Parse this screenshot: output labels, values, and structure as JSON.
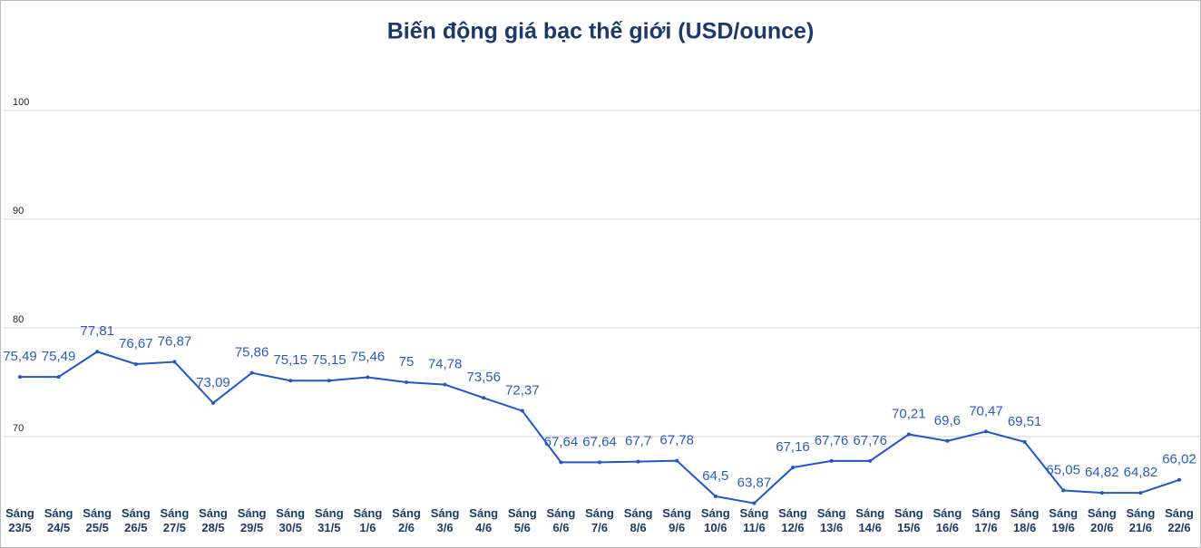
{
  "chart_data": {
    "type": "line",
    "title": "Biến động giá bạc thế giới (USD/ounce)",
    "categories": [
      [
        "Sáng",
        "23/5"
      ],
      [
        "Sáng",
        "24/5"
      ],
      [
        "Sáng",
        "25/5"
      ],
      [
        "Sáng",
        "26/5"
      ],
      [
        "Sáng",
        "27/5"
      ],
      [
        "Sáng",
        "28/5"
      ],
      [
        "Sáng",
        "29/5"
      ],
      [
        "Sáng",
        "30/5"
      ],
      [
        "Sáng",
        "31/5"
      ],
      [
        "Sáng",
        "1/6"
      ],
      [
        "Sáng",
        "2/6"
      ],
      [
        "Sáng",
        "3/6"
      ],
      [
        "Sáng",
        "4/6"
      ],
      [
        "Sáng",
        "5/6"
      ],
      [
        "Sáng",
        "6/6"
      ],
      [
        "Sáng",
        "7/6"
      ],
      [
        "Sáng",
        "8/6"
      ],
      [
        "Sáng",
        "9/6"
      ],
      [
        "Sáng",
        "10/6"
      ],
      [
        "Sáng",
        "11/6"
      ],
      [
        "Sáng",
        "12/6"
      ],
      [
        "Sáng",
        "13/6"
      ],
      [
        "Sáng",
        "14/6"
      ],
      [
        "Sáng",
        "15/6"
      ],
      [
        "Sáng",
        "16/6"
      ],
      [
        "Sáng",
        "17/6"
      ],
      [
        "Sáng",
        "18/6"
      ],
      [
        "Sáng",
        "19/6"
      ],
      [
        "Sáng",
        "20/6"
      ],
      [
        "Sáng",
        "21/6"
      ],
      [
        "Sáng",
        "22/6"
      ]
    ],
    "values": [
      75.49,
      75.49,
      77.81,
      76.67,
      76.87,
      73.09,
      75.86,
      75.15,
      75.15,
      75.46,
      75,
      74.78,
      73.56,
      72.37,
      67.64,
      67.64,
      67.7,
      67.78,
      64.5,
      63.87,
      67.16,
      67.76,
      67.76,
      70.21,
      69.6,
      70.47,
      69.51,
      65.05,
      64.82,
      64.82,
      66.02
    ],
    "value_labels": [
      "75,49",
      "75,49",
      "77,81",
      "76,67",
      "76,87",
      "73,09",
      "75,86",
      "75,15",
      "75,15",
      "75,46",
      "75",
      "74,78",
      "73,56",
      "72,37",
      "67,64",
      "67,64",
      "67,7",
      "67,78",
      "64,5",
      "63,87",
      "67,16",
      "67,76",
      "67,76",
      "70,21",
      "69,6",
      "70,47",
      "69,51",
      "65,05",
      "64,82",
      "64,82",
      "66,02"
    ],
    "color": "#1f56c9",
    "ylim": [
      63.5,
      110
    ],
    "yticks": [
      70,
      80,
      90,
      100
    ],
    "grid": true
  }
}
